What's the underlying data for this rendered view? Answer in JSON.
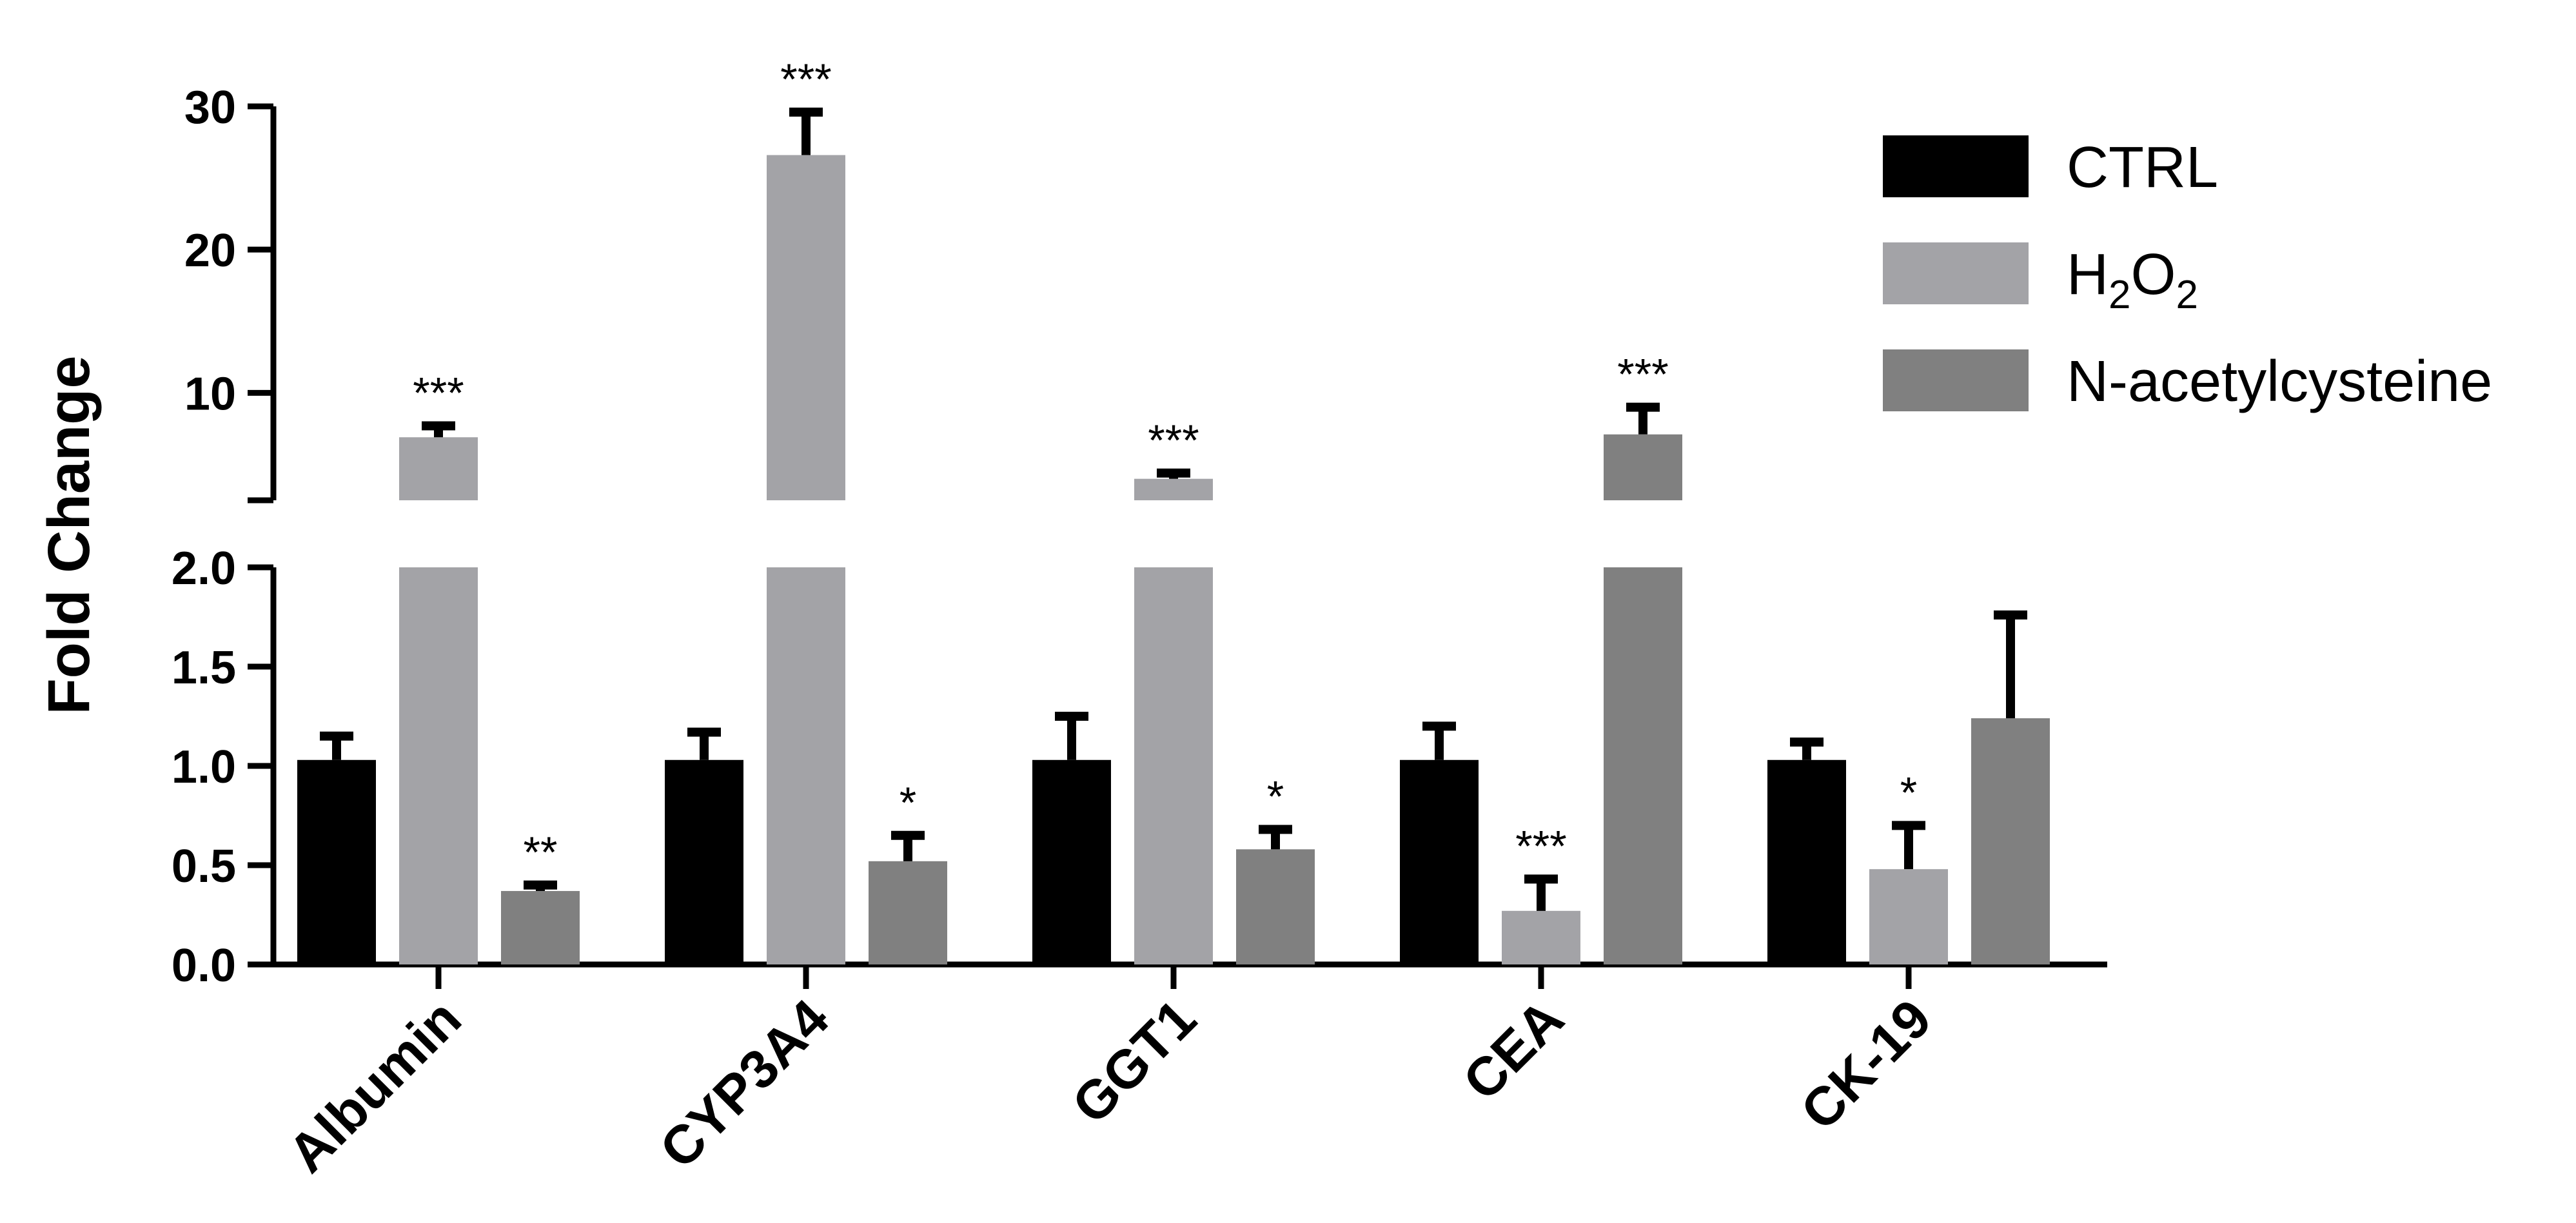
{
  "chart_data": {
    "type": "bar",
    "ylabel": "Fold Change",
    "xlabel": "",
    "categories": [
      "Albumin",
      "CYP3A4",
      "GGT1",
      "CEA",
      "CK-19"
    ],
    "axis_break": {
      "lower_range": [
        0,
        2
      ],
      "upper_range": [
        2.5,
        30
      ],
      "lower_ticks": [
        "0.0",
        "0.5",
        "1.0",
        "1.5",
        "2.0"
      ],
      "upper_ticks": [
        "10",
        "20",
        "30"
      ]
    },
    "series": [
      {
        "name": "CTRL",
        "color": "#000000",
        "values": [
          1.03,
          1.03,
          1.03,
          1.03,
          1.03
        ],
        "errors": [
          0.12,
          0.14,
          0.22,
          0.17,
          0.09
        ],
        "significance": [
          "",
          "",
          "",
          "",
          ""
        ]
      },
      {
        "name": "H2O2",
        "color": "#a3a3a7",
        "values": [
          6.9,
          26.6,
          4.0,
          0.27,
          0.48
        ],
        "errors": [
          0.8,
          3.0,
          0.4,
          0.16,
          0.22
        ],
        "significance": [
          "***",
          "***",
          "***",
          "***",
          "*"
        ]
      },
      {
        "name": "N-acetylcysteine",
        "color": "#808080",
        "values": [
          0.37,
          0.52,
          0.58,
          7.1,
          1.24
        ],
        "errors": [
          0.03,
          0.13,
          0.1,
          1.9,
          0.52
        ],
        "significance": [
          "**",
          "*",
          "*",
          "***",
          ""
        ]
      }
    ],
    "legend": {
      "position": "top-right",
      "entries": [
        "CTRL",
        "H2O2",
        "N-acetylcysteine"
      ]
    },
    "grid": false
  }
}
